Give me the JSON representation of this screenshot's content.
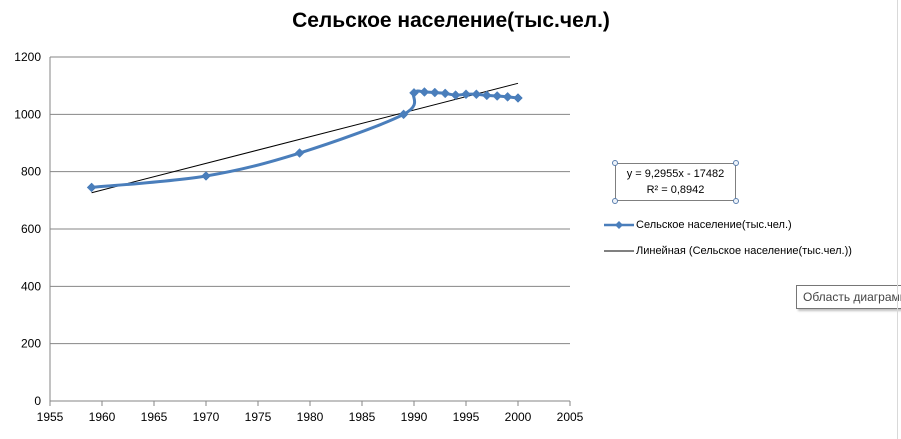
{
  "chart_data": {
    "type": "line",
    "title": "Сельское население(тыс.чел.)",
    "xlabel": "",
    "ylabel": "",
    "xlim": [
      1955,
      2005
    ],
    "ylim": [
      0,
      1200
    ],
    "x_ticks": [
      1955,
      1960,
      1965,
      1970,
      1975,
      1980,
      1985,
      1990,
      1995,
      2000,
      2005
    ],
    "y_ticks": [
      0,
      200,
      400,
      600,
      800,
      1000,
      1200
    ],
    "grid": true,
    "legend_position": "right",
    "series": [
      {
        "name": "Сельское население(тыс.чел.)",
        "color": "#4a7ebb",
        "marker": "diamond",
        "smooth": true,
        "x": [
          1959,
          1970,
          1979,
          1989,
          1990,
          1991,
          1992,
          1993,
          1994,
          1995,
          1996,
          1997,
          1998,
          1999,
          2000
        ],
        "y": [
          745,
          785,
          865,
          1000,
          1075,
          1078,
          1076,
          1073,
          1067,
          1070,
          1070,
          1066,
          1064,
          1061,
          1057
        ]
      }
    ],
    "trendline": {
      "name": "Линейная (Сельское население(тыс.чел.))",
      "type": "linear",
      "color": "#000000",
      "x_range": [
        1959,
        2000
      ],
      "equation": "y = 9,2955x - 17482",
      "r_squared": "R² = 0,8942"
    }
  },
  "ui": {
    "tooltip": "Область диаграммы"
  }
}
